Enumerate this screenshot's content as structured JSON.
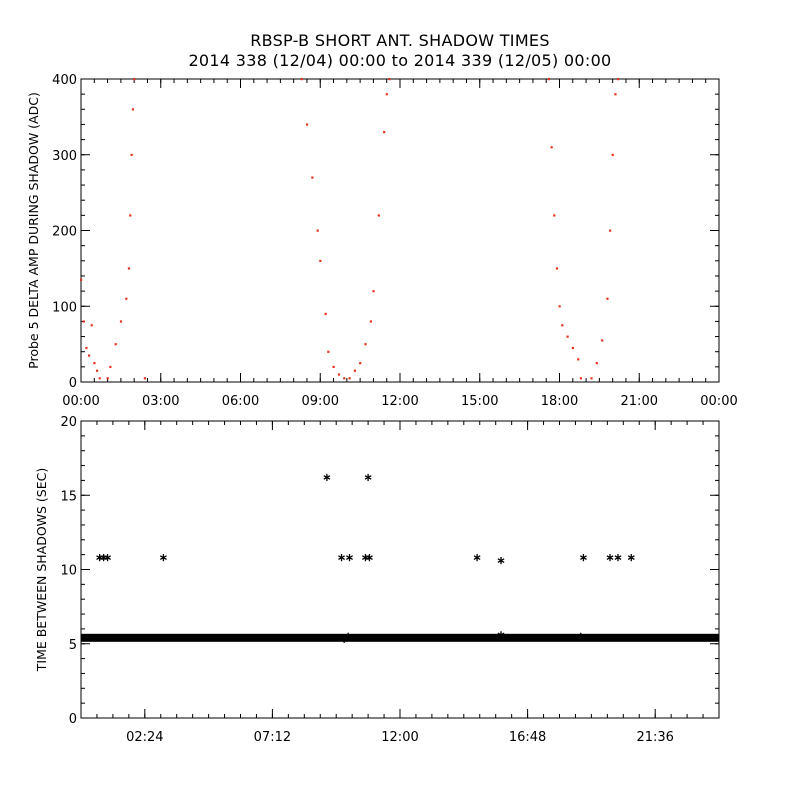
{
  "title": {
    "line1": "RBSP-B SHORT ANT. SHADOW TIMES",
    "line2": "2014 338 (12/04) 00:00 to 2014 339 (12/05) 00:00"
  },
  "colors": {
    "red_series": "#e8321e",
    "black_series": "#000000"
  },
  "chart_data": [
    {
      "type": "scatter",
      "ylabel": "Probe 5 DELTA AMP DURING SHADOW (ADC)",
      "xlim_hours": [
        0,
        24
      ],
      "ylim": [
        0,
        400
      ],
      "x_tick_labels": [
        "00:00",
        "03:00",
        "06:00",
        "09:00",
        "12:00",
        "15:00",
        "18:00",
        "21:00",
        "00:00"
      ],
      "x_tick_hours": [
        0,
        3,
        6,
        9,
        12,
        15,
        18,
        21,
        24
      ],
      "y_ticks": [
        0,
        100,
        200,
        300,
        400
      ],
      "series": [
        {
          "color": "red",
          "points": [
            [
              0.0,
              135
            ],
            [
              0.1,
              80
            ],
            [
              0.2,
              45
            ],
            [
              0.3,
              35
            ],
            [
              0.4,
              75
            ],
            [
              0.5,
              25
            ],
            [
              0.6,
              15
            ],
            [
              0.7,
              5
            ],
            [
              1.0,
              5
            ],
            [
              1.1,
              20
            ],
            [
              1.3,
              50
            ],
            [
              1.5,
              80
            ],
            [
              1.7,
              110
            ],
            [
              1.8,
              150
            ],
            [
              1.85,
              220
            ],
            [
              1.9,
              300
            ],
            [
              1.95,
              360
            ],
            [
              2.0,
              400
            ],
            [
              2.4,
              5
            ],
            [
              8.3,
              400
            ],
            [
              8.5,
              340
            ],
            [
              8.7,
              270
            ],
            [
              8.9,
              200
            ],
            [
              9.0,
              160
            ],
            [
              9.2,
              90
            ],
            [
              9.3,
              40
            ],
            [
              9.5,
              20
            ],
            [
              9.7,
              10
            ],
            [
              9.9,
              5
            ],
            [
              10.1,
              5
            ],
            [
              10.3,
              15
            ],
            [
              10.5,
              25
            ],
            [
              10.7,
              50
            ],
            [
              10.9,
              80
            ],
            [
              11.0,
              120
            ],
            [
              11.2,
              220
            ],
            [
              11.4,
              330
            ],
            [
              11.5,
              380
            ],
            [
              11.6,
              400
            ],
            [
              17.6,
              400
            ],
            [
              17.7,
              310
            ],
            [
              17.8,
              220
            ],
            [
              17.9,
              150
            ],
            [
              18.0,
              100
            ],
            [
              18.1,
              75
            ],
            [
              18.3,
              60
            ],
            [
              18.5,
              45
            ],
            [
              18.7,
              30
            ],
            [
              18.8,
              5
            ],
            [
              19.2,
              5
            ],
            [
              19.4,
              25
            ],
            [
              19.6,
              55
            ],
            [
              19.8,
              110
            ],
            [
              19.9,
              200
            ],
            [
              20.0,
              300
            ],
            [
              20.1,
              380
            ],
            [
              20.2,
              400
            ]
          ]
        }
      ]
    },
    {
      "type": "scatter",
      "ylabel": "TIME BETWEEN SHADOWS (SEC)",
      "xlim_hours": [
        0,
        24
      ],
      "ylim": [
        0,
        20
      ],
      "x_tick_labels": [
        "02:24",
        "07:12",
        "12:00",
        "16:48",
        "21:36"
      ],
      "x_tick_hours": [
        2.4,
        7.2,
        12.0,
        16.8,
        21.6
      ],
      "y_ticks": [
        0,
        5,
        10,
        15,
        20
      ],
      "baseline": {
        "y": 5.4,
        "x_range_hours": [
          0.0,
          24.0
        ]
      },
      "series": [
        {
          "marker": "asterisk",
          "points": [
            [
              0.7,
              10.8
            ],
            [
              0.85,
              10.8
            ],
            [
              1.0,
              10.8
            ],
            [
              3.1,
              10.8
            ],
            [
              9.25,
              16.2
            ],
            [
              9.8,
              10.8
            ],
            [
              10.1,
              10.8
            ],
            [
              10.7,
              10.8
            ],
            [
              10.8,
              16.2
            ],
            [
              10.85,
              10.8
            ],
            [
              14.9,
              10.8
            ],
            [
              15.8,
              10.6
            ],
            [
              18.9,
              10.8
            ],
            [
              19.9,
              10.8
            ],
            [
              20.2,
              10.8
            ],
            [
              20.7,
              10.8
            ],
            [
              15.8,
              5.6
            ],
            [
              10.05,
              5.5
            ],
            [
              18.8,
              5.5
            ],
            [
              9.9,
              5.3
            ]
          ]
        }
      ]
    }
  ]
}
